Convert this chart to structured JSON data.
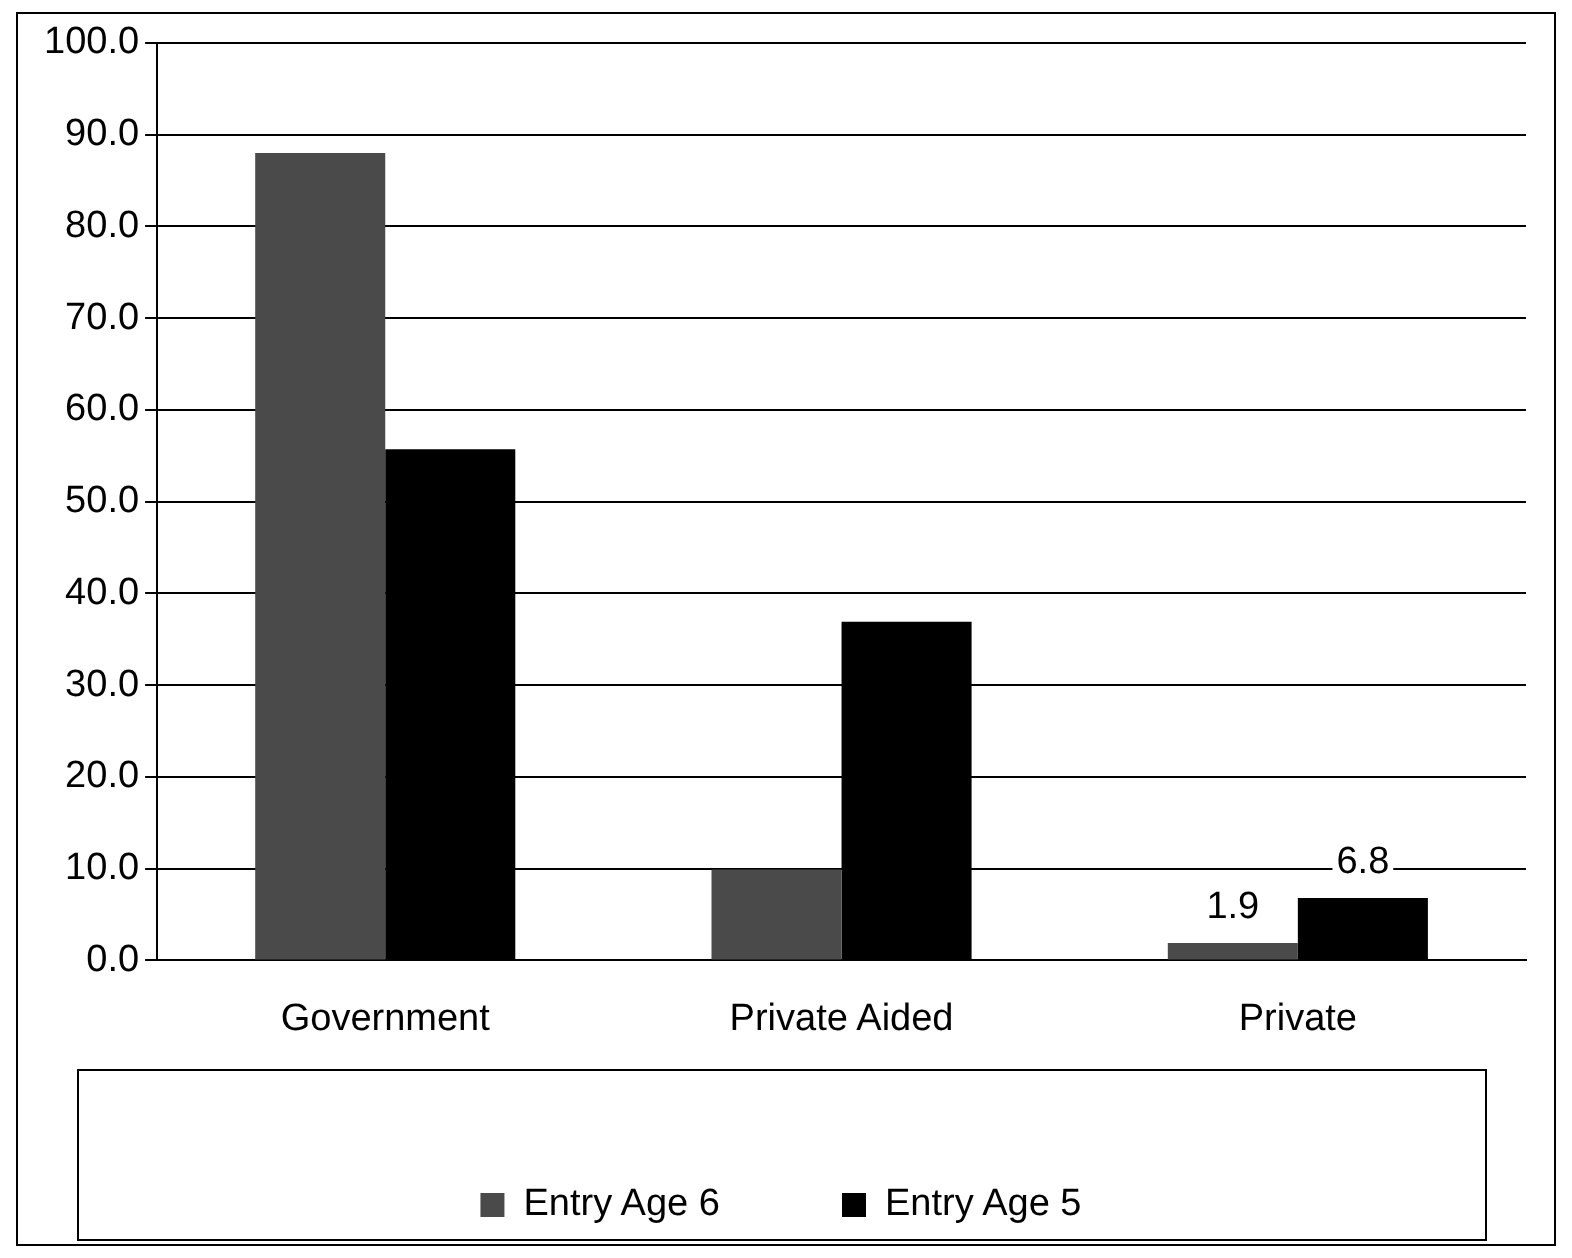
{
  "chart_data": {
    "type": "bar",
    "categories": [
      "Government",
      "Private Aided",
      "Private"
    ],
    "series": [
      {
        "name": "Entry Age 6",
        "color": "#4a4a4a",
        "values": [
          88.0,
          9.9,
          1.9
        ],
        "value_labels": [
          null,
          null,
          "1.9"
        ]
      },
      {
        "name": "Entry Age 5",
        "color": "#000000",
        "values": [
          55.7,
          36.9,
          6.8
        ],
        "value_labels": [
          null,
          null,
          "6.8"
        ]
      }
    ],
    "ylim": [
      0,
      100
    ],
    "yticks": [
      {
        "value": 0,
        "label": "0.0"
      },
      {
        "value": 10,
        "label": "10.0"
      },
      {
        "value": 20,
        "label": "20.0"
      },
      {
        "value": 30,
        "label": "30.0"
      },
      {
        "value": 40,
        "label": "40.0"
      },
      {
        "value": 50,
        "label": "50.0"
      },
      {
        "value": 60,
        "label": "60.0"
      },
      {
        "value": 70,
        "label": "70.0"
      },
      {
        "value": 80,
        "label": "80.0"
      },
      {
        "value": 90,
        "label": "90.0"
      },
      {
        "value": 100,
        "label": "100.0"
      }
    ],
    "grid": "y",
    "legend": "bottom"
  }
}
